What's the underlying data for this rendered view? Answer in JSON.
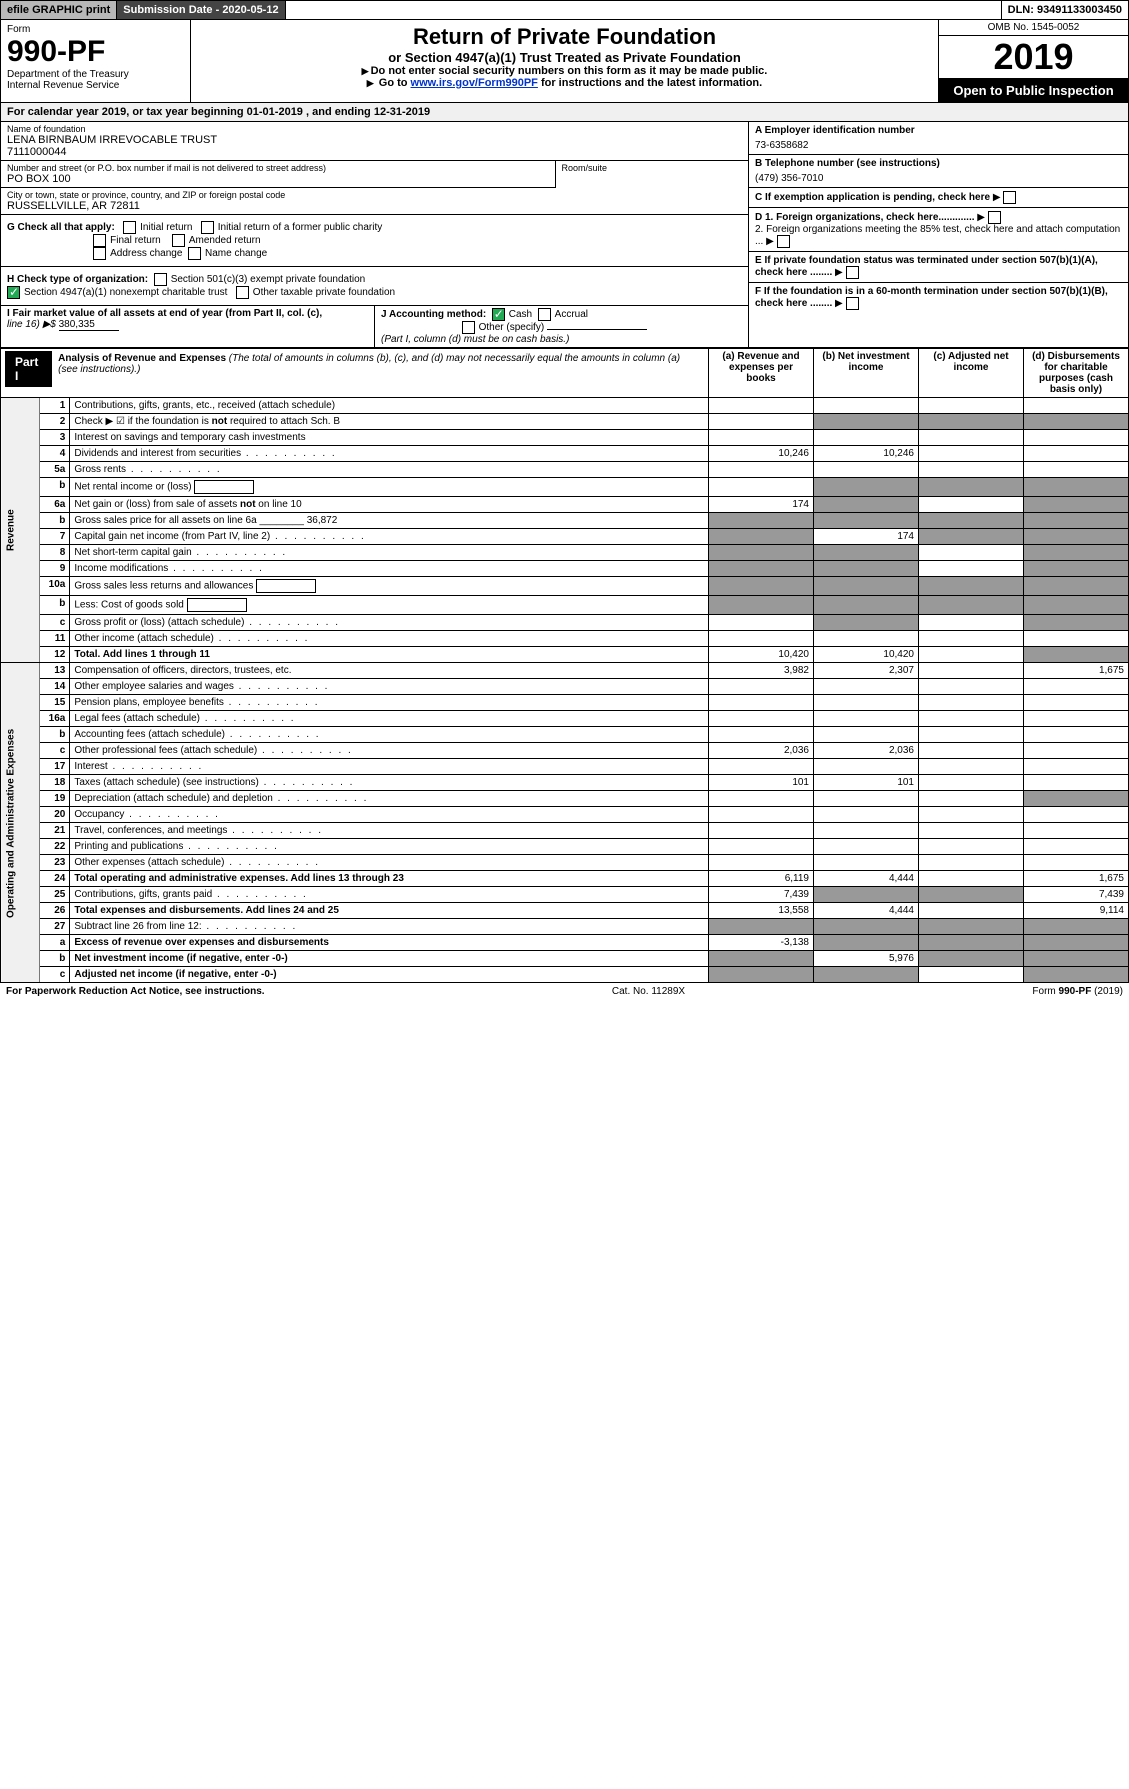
{
  "topbar": {
    "efile": "efile GRAPHIC print",
    "submission_label": "Submission Date - 2020-05-12",
    "dln": "DLN: 93491133003450"
  },
  "header": {
    "form_word": "Form",
    "form_number": "990-PF",
    "dept1": "Department of the Treasury",
    "dept2": "Internal Revenue Service",
    "title": "Return of Private Foundation",
    "subtitle": "or Section 4947(a)(1) Trust Treated as Private Foundation",
    "note1": "Do not enter social security numbers on this form as it may be made public.",
    "note2_pre": "Go to ",
    "note2_link": "www.irs.gov/Form990PF",
    "note2_post": " for instructions and the latest information.",
    "omb": "OMB No. 1545-0052",
    "year": "2019",
    "open": "Open to Public Inspection"
  },
  "calendar": {
    "text_pre": "For calendar year 2019, or tax year beginning ",
    "begin": "01-01-2019",
    "mid": " , and ending ",
    "end": "12-31-2019"
  },
  "info": {
    "name_lbl": "Name of foundation",
    "name1": "LENA BIRNBAUM IRREVOCABLE TRUST",
    "name2": "7111000044",
    "addr_lbl": "Number and street (or P.O. box number if mail is not delivered to street address)",
    "addr": "PO BOX 100",
    "room_lbl": "Room/suite",
    "city_lbl": "City or town, state or province, country, and ZIP or foreign postal code",
    "city": "RUSSELLVILLE, AR  72811",
    "ein_lbl": "A Employer identification number",
    "ein": "73-6358682",
    "phone_lbl": "B Telephone number (see instructions)",
    "phone": "(479) 356-7010",
    "c": "C If exemption application is pending, check here",
    "d1": "D 1. Foreign organizations, check here.............",
    "d2": "2. Foreign organizations meeting the 85% test, check here and attach computation ...",
    "e": "E If private foundation status was terminated under section 507(b)(1)(A), check here ........",
    "f": "F If the foundation is in a 60-month termination under section 507(b)(1)(B), check here ........"
  },
  "g": {
    "label": "G Check all that apply:",
    "initial": "Initial return",
    "final": "Final return",
    "address": "Address change",
    "initial_former": "Initial return of a former public charity",
    "amended": "Amended return",
    "name_change": "Name change"
  },
  "h": {
    "label": "H Check type of organization:",
    "opt1": "Section 501(c)(3) exempt private foundation",
    "opt2": "Section 4947(a)(1) nonexempt charitable trust",
    "opt3": "Other taxable private foundation"
  },
  "i": {
    "label": "I Fair market value of all assets at end of year (from Part II, col. (c),",
    "line": "line 16) ▶$ ",
    "value": "380,335"
  },
  "j": {
    "label": "J Accounting method:",
    "cash": "Cash",
    "accrual": "Accrual",
    "other": "Other (specify)",
    "note": "(Part I, column (d) must be on cash basis.)"
  },
  "part1": {
    "tab": "Part I",
    "title": "Analysis of Revenue and Expenses",
    "title_note": " (The total of amounts in columns (b), (c), and (d) may not necessarily equal the amounts in column (a) (see instructions).)",
    "col_a": "(a)   Revenue and expenses per books",
    "col_b": "(b)  Net investment income",
    "col_c": "(c)  Adjusted net income",
    "col_d": "(d)  Disbursements for charitable purposes (cash basis only)"
  },
  "vlabels": {
    "revenue": "Revenue",
    "expenses": "Operating and Administrative Expenses"
  },
  "rows": [
    {
      "n": "1",
      "d": "Contributions, gifts, grants, etc., received (attach schedule)",
      "a": "",
      "b": "",
      "c": "",
      "dd": ""
    },
    {
      "n": "2",
      "d": "Check ▶ ☑ if the foundation is not required to attach Sch. B",
      "a": "",
      "b": "",
      "c": "",
      "dd": "",
      "bgray": true,
      "cgray": true,
      "dgray": true
    },
    {
      "n": "3",
      "d": "Interest on savings and temporary cash investments",
      "a": "",
      "b": "",
      "c": "",
      "dd": ""
    },
    {
      "n": "4",
      "d": "Dividends and interest from securities",
      "a": "10,246",
      "b": "10,246",
      "c": "",
      "dd": ""
    },
    {
      "n": "5a",
      "d": "Gross rents",
      "a": "",
      "b": "",
      "c": "",
      "dd": ""
    },
    {
      "n": "b",
      "d": "Net rental income or (loss)",
      "a": "",
      "b": "",
      "c": "",
      "dd": "",
      "agray": false,
      "bgray": true,
      "cgray": true,
      "dgray": true,
      "box": true
    },
    {
      "n": "6a",
      "d": "Net gain or (loss) from sale of assets not on line 10",
      "a": "174",
      "b": "",
      "c": "",
      "dd": "",
      "bgray": true,
      "dgray": true
    },
    {
      "n": "b",
      "d": "Gross sales price for all assets on line 6a ________ 36,872",
      "a": "",
      "b": "",
      "c": "",
      "dd": "",
      "agray": true,
      "bgray": true,
      "cgray": true,
      "dgray": true
    },
    {
      "n": "7",
      "d": "Capital gain net income (from Part IV, line 2)",
      "a": "",
      "b": "174",
      "c": "",
      "dd": "",
      "agray": true,
      "cgray": true,
      "dgray": true
    },
    {
      "n": "8",
      "d": "Net short-term capital gain",
      "a": "",
      "b": "",
      "c": "",
      "dd": "",
      "agray": true,
      "bgray": true,
      "dgray": true
    },
    {
      "n": "9",
      "d": "Income modifications",
      "a": "",
      "b": "",
      "c": "",
      "dd": "",
      "agray": true,
      "bgray": true,
      "dgray": true
    },
    {
      "n": "10a",
      "d": "Gross sales less returns and allowances",
      "a": "",
      "b": "",
      "c": "",
      "dd": "",
      "agray": true,
      "bgray": true,
      "cgray": true,
      "dgray": true,
      "box": true
    },
    {
      "n": "b",
      "d": "Less: Cost of goods sold",
      "a": "",
      "b": "",
      "c": "",
      "dd": "",
      "agray": true,
      "bgray": true,
      "cgray": true,
      "dgray": true,
      "box": true
    },
    {
      "n": "c",
      "d": "Gross profit or (loss) (attach schedule)",
      "a": "",
      "b": "",
      "c": "",
      "dd": "",
      "bgray": true,
      "dgray": true
    },
    {
      "n": "11",
      "d": "Other income (attach schedule)",
      "a": "",
      "b": "",
      "c": "",
      "dd": ""
    },
    {
      "n": "12",
      "d": "Total. Add lines 1 through 11",
      "a": "10,420",
      "b": "10,420",
      "c": "",
      "dd": "",
      "bold": true,
      "dgray": true
    }
  ],
  "exp_rows": [
    {
      "n": "13",
      "d": "Compensation of officers, directors, trustees, etc.",
      "a": "3,982",
      "b": "2,307",
      "c": "",
      "dd": "1,675"
    },
    {
      "n": "14",
      "d": "Other employee salaries and wages",
      "a": "",
      "b": "",
      "c": "",
      "dd": ""
    },
    {
      "n": "15",
      "d": "Pension plans, employee benefits",
      "a": "",
      "b": "",
      "c": "",
      "dd": ""
    },
    {
      "n": "16a",
      "d": "Legal fees (attach schedule)",
      "a": "",
      "b": "",
      "c": "",
      "dd": ""
    },
    {
      "n": "b",
      "d": "Accounting fees (attach schedule)",
      "a": "",
      "b": "",
      "c": "",
      "dd": ""
    },
    {
      "n": "c",
      "d": "Other professional fees (attach schedule)",
      "a": "2,036",
      "b": "2,036",
      "c": "",
      "dd": ""
    },
    {
      "n": "17",
      "d": "Interest",
      "a": "",
      "b": "",
      "c": "",
      "dd": ""
    },
    {
      "n": "18",
      "d": "Taxes (attach schedule) (see instructions)",
      "a": "101",
      "b": "101",
      "c": "",
      "dd": ""
    },
    {
      "n": "19",
      "d": "Depreciation (attach schedule) and depletion",
      "a": "",
      "b": "",
      "c": "",
      "dd": "",
      "dgray": true
    },
    {
      "n": "20",
      "d": "Occupancy",
      "a": "",
      "b": "",
      "c": "",
      "dd": ""
    },
    {
      "n": "21",
      "d": "Travel, conferences, and meetings",
      "a": "",
      "b": "",
      "c": "",
      "dd": ""
    },
    {
      "n": "22",
      "d": "Printing and publications",
      "a": "",
      "b": "",
      "c": "",
      "dd": ""
    },
    {
      "n": "23",
      "d": "Other expenses (attach schedule)",
      "a": "",
      "b": "",
      "c": "",
      "dd": ""
    },
    {
      "n": "24",
      "d": "Total operating and administrative expenses. Add lines 13 through 23",
      "a": "6,119",
      "b": "4,444",
      "c": "",
      "dd": "1,675",
      "bold": true
    },
    {
      "n": "25",
      "d": "Contributions, gifts, grants paid",
      "a": "7,439",
      "b": "",
      "c": "",
      "dd": "7,439",
      "bgray": true,
      "cgray": true
    },
    {
      "n": "26",
      "d": "Total expenses and disbursements. Add lines 24 and 25",
      "a": "13,558",
      "b": "4,444",
      "c": "",
      "dd": "9,114",
      "bold": true
    },
    {
      "n": "27",
      "d": "Subtract line 26 from line 12:",
      "a": "",
      "b": "",
      "c": "",
      "dd": "",
      "agray": true,
      "bgray": true,
      "cgray": true,
      "dgray": true
    },
    {
      "n": "a",
      "d": "Excess of revenue over expenses and disbursements",
      "a": "-3,138",
      "b": "",
      "c": "",
      "dd": "",
      "bold": true,
      "bgray": true,
      "cgray": true,
      "dgray": true
    },
    {
      "n": "b",
      "d": "Net investment income (if negative, enter -0-)",
      "a": "",
      "b": "5,976",
      "c": "",
      "dd": "",
      "bold": true,
      "agray": true,
      "cgray": true,
      "dgray": true
    },
    {
      "n": "c",
      "d": "Adjusted net income (if negative, enter -0-)",
      "a": "",
      "b": "",
      "c": "",
      "dd": "",
      "bold": true,
      "agray": true,
      "bgray": true,
      "dgray": true
    }
  ],
  "footer": {
    "left": "For Paperwork Reduction Act Notice, see instructions.",
    "mid": "Cat. No. 11289X",
    "right": "Form 990-PF (2019)"
  }
}
